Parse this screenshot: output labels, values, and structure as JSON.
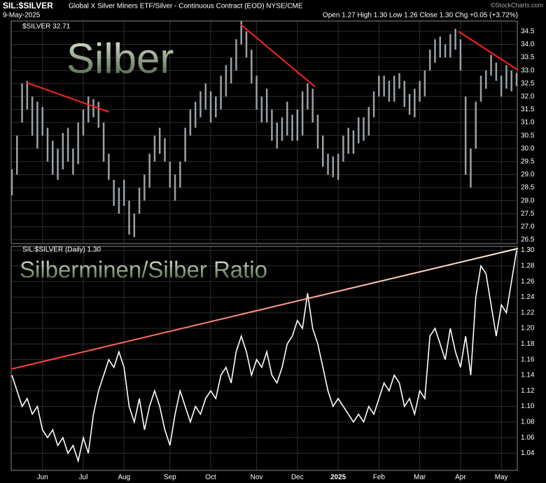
{
  "header": {
    "symbol": "SIL:$SILVER",
    "description": "Global X Silver Miners ETF/Silver - Continuous Contract (EOD) NYSE/CME",
    "credit": "©StockCharts.com",
    "date": "9-May-2025",
    "quote": "Open 1.27 High 1.30 Low 1.26 Close 1.30 Chg +0.05 (+3.72%)"
  },
  "chart_data": [
    {
      "type": "hilo",
      "annotation": "Silber",
      "legend": "$SILVER 32.71",
      "series": [
        {
          "name": "$SILVER",
          "color": "#9aa0a6",
          "high": [
            29.2,
            30.5,
            32.5,
            32.6,
            32,
            31.8,
            31.6,
            30.8,
            30.3,
            30,
            30.6,
            30.8,
            30,
            31,
            31.5,
            32,
            31.9,
            31.8,
            31,
            29.8,
            28.8,
            28.5,
            28.8,
            28,
            27.5,
            28.5,
            29,
            29.8,
            30.5,
            30.8,
            30.4,
            29.5,
            29,
            29.5,
            30.8,
            31.5,
            31.8,
            32.2,
            32.5,
            32.2,
            32,
            32.8,
            33.2,
            33.5,
            34.2,
            34.9,
            34.5,
            33.8,
            32.8,
            32,
            32.3,
            31.5,
            31,
            31.2,
            31.8,
            31.3,
            31.5,
            32.2,
            32.5,
            32.3,
            31.3,
            30.5,
            29.8,
            29.7,
            29.8,
            30.5,
            30.8,
            30.7,
            31.2,
            31.2,
            31.6,
            32.2,
            32.8,
            32.8,
            32.6,
            32.8,
            32.9,
            32.6,
            32.1,
            32.3,
            32.6,
            33,
            33.8,
            34.2,
            34.3,
            34,
            34.4,
            34.6,
            34.2,
            32,
            30,
            31.8,
            32.8,
            33,
            33.6,
            33.3,
            32.8,
            33.2,
            33,
            32.9
          ],
          "low": [
            28.2,
            29,
            31,
            31.5,
            30.5,
            30,
            30.5,
            29.5,
            29,
            28.8,
            29.2,
            29.5,
            29,
            29.4,
            30.5,
            31,
            31.2,
            30.8,
            29.5,
            28.8,
            27.8,
            27.5,
            27.8,
            26.7,
            26.6,
            27.5,
            28,
            28.5,
            29.5,
            29.8,
            29.5,
            28.5,
            28,
            28.5,
            29.5,
            30.5,
            30.8,
            31.2,
            31.5,
            31,
            31.2,
            31.5,
            32,
            32.5,
            33,
            34,
            33.5,
            32.5,
            31.5,
            31,
            31,
            30.3,
            30,
            30.3,
            30.5,
            30.3,
            30.3,
            30.5,
            31.5,
            31,
            30,
            29.3,
            29,
            28.9,
            28.8,
            29.5,
            29.8,
            29.8,
            30.2,
            30.3,
            30.5,
            31.2,
            32,
            32,
            31.8,
            31.8,
            32.3,
            31.6,
            31.3,
            31.2,
            31.8,
            32,
            33,
            33.3,
            33.5,
            33.5,
            33.5,
            33.8,
            33,
            29,
            28.5,
            30,
            31.8,
            32.3,
            32.8,
            32.6,
            32,
            32.3,
            32.2,
            32.4
          ]
        }
      ],
      "ylim": [
        26.35,
        34.9
      ],
      "yticks": [
        26.5,
        {
          "value": 27,
          "label": "27.0"
        },
        27.5,
        {
          "value": 28,
          "label": "28.0"
        },
        28.5,
        {
          "value": 29,
          "label": "29.0"
        },
        29.5,
        {
          "value": 30,
          "label": "30.0"
        },
        30.5,
        {
          "value": 31,
          "label": "31.0"
        },
        31.5,
        {
          "value": 32,
          "label": "32.0"
        },
        32.5,
        {
          "value": 33,
          "label": "33.0"
        },
        33.5,
        {
          "value": 34,
          "label": "34.0"
        },
        34.5
      ],
      "grid": true
    },
    {
      "type": "line",
      "annotation": "Silberminen/Silber Ratio",
      "legend": "SIL:$SILVER (Daily) 1.30",
      "categories": [
        null,
        null,
        null,
        null,
        null,
        null,
        "Jun",
        null,
        null,
        null,
        null,
        null,
        null,
        null,
        "Jul",
        null,
        null,
        null,
        null,
        null,
        null,
        null,
        "Aug",
        null,
        null,
        null,
        null,
        null,
        null,
        null,
        null,
        "Sep",
        null,
        null,
        null,
        null,
        null,
        null,
        null,
        "Oct",
        null,
        null,
        null,
        null,
        null,
        null,
        null,
        null,
        "Nov",
        null,
        null,
        null,
        null,
        null,
        null,
        null,
        "Dec",
        null,
        null,
        null,
        null,
        null,
        null,
        null,
        "2025",
        null,
        null,
        null,
        null,
        null,
        null,
        null,
        "Feb",
        null,
        null,
        null,
        null,
        null,
        null,
        null,
        "Mar",
        null,
        null,
        null,
        null,
        null,
        null,
        null,
        "Apr",
        null,
        null,
        null,
        null,
        null,
        null,
        null,
        "May",
        null,
        null,
        null
      ],
      "series": [
        {
          "name": "SIL:$SILVER",
          "color": "#ffffff",
          "values": [
            1.14,
            1.12,
            1.1,
            1.11,
            1.09,
            1.1,
            1.07,
            1.06,
            1.07,
            1.05,
            1.06,
            1.04,
            1.05,
            1.03,
            1.06,
            1.04,
            1.09,
            1.12,
            1.14,
            1.16,
            1.15,
            1.17,
            1.15,
            1.1,
            1.08,
            1.11,
            1.07,
            1.1,
            1.12,
            1.1,
            1.07,
            1.05,
            1.09,
            1.12,
            1.1,
            1.08,
            1.1,
            1.09,
            1.11,
            1.12,
            1.11,
            1.14,
            1.15,
            1.13,
            1.17,
            1.19,
            1.17,
            1.14,
            1.16,
            1.15,
            1.17,
            1.14,
            1.13,
            1.15,
            1.18,
            1.19,
            1.21,
            1.2,
            1.245,
            1.2,
            1.18,
            1.15,
            1.12,
            1.1,
            1.11,
            1.1,
            1.09,
            1.08,
            1.09,
            1.08,
            1.1,
            1.09,
            1.11,
            1.13,
            1.12,
            1.14,
            1.13,
            1.1,
            1.11,
            1.09,
            1.12,
            1.11,
            1.19,
            1.2,
            1.18,
            1.16,
            1.2,
            1.17,
            1.15,
            1.19,
            1.14,
            1.24,
            1.28,
            1.27,
            1.23,
            1.19,
            1.23,
            1.22,
            1.26,
            1.3
          ]
        }
      ],
      "ylim": [
        1.018,
        1.305
      ],
      "yticks": [
        1.04,
        1.06,
        1.08,
        {
          "value": 1.1,
          "label": "1.10"
        },
        1.12,
        1.14,
        1.16,
        1.18,
        {
          "value": 1.2,
          "label": "1.20"
        },
        1.22,
        1.24,
        1.26,
        1.28,
        {
          "value": 1.3,
          "label": "1.30"
        }
      ],
      "grid": true
    }
  ]
}
